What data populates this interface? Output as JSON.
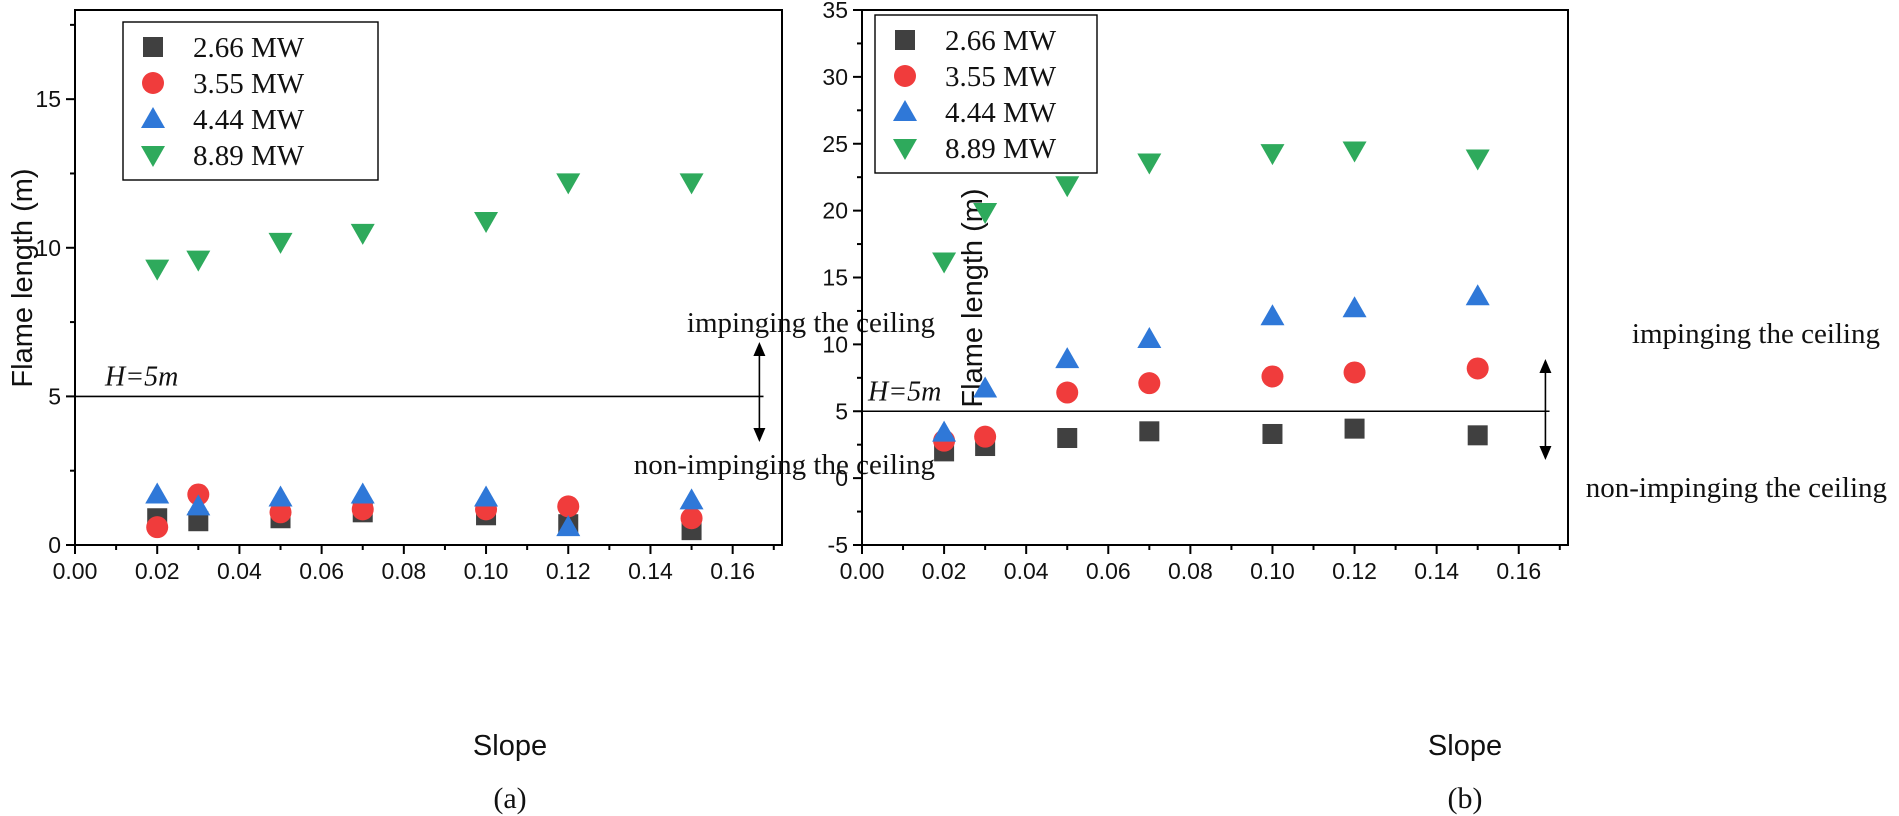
{
  "chart_data": [
    {
      "type": "scatter",
      "panel_label": "(a)",
      "xlabel": "Slope",
      "ylabel": "Flame length  (m)",
      "xlim": [
        0.0,
        0.172
      ],
      "ylim": [
        0,
        18
      ],
      "xticks": [
        0.0,
        0.02,
        0.04,
        0.06,
        0.08,
        0.1,
        0.12,
        0.14,
        0.16
      ],
      "xtick_labels": [
        "0.00",
        "0.02",
        "0.04",
        "0.06",
        "0.08",
        "0.10",
        "0.12",
        "0.14",
        "0.16"
      ],
      "yticks": [
        0,
        5,
        10,
        15
      ],
      "ytick_labels": [
        "0",
        "5",
        "10",
        "15"
      ],
      "legend_position": "top-left",
      "reference_line": {
        "y": 5,
        "label": "H=5m"
      },
      "annotations": {
        "above": "impinging the ceiling",
        "below": "non-impinging the ceiling",
        "arrow_x": 0.1665
      },
      "series": [
        {
          "name": "2.66 MW",
          "marker": "square",
          "color": "#404040",
          "x": [
            0.02,
            0.03,
            0.05,
            0.07,
            0.1,
            0.12,
            0.15
          ],
          "y": [
            0.9,
            0.8,
            0.9,
            1.1,
            1.0,
            0.7,
            0.5
          ]
        },
        {
          "name": "3.55 MW",
          "marker": "circle",
          "color": "#f03c3c",
          "x": [
            0.02,
            0.03,
            0.05,
            0.07,
            0.1,
            0.12,
            0.15
          ],
          "y": [
            0.6,
            1.7,
            1.1,
            1.2,
            1.2,
            1.3,
            0.9
          ]
        },
        {
          "name": "4.44 MW",
          "marker": "triangle-up",
          "color": "#2f78d8",
          "x": [
            0.02,
            0.03,
            0.05,
            0.07,
            0.1,
            0.12,
            0.15
          ],
          "y": [
            1.7,
            1.3,
            1.6,
            1.7,
            1.6,
            0.6,
            1.5
          ]
        },
        {
          "name": "8.89 MW",
          "marker": "triangle-down",
          "color": "#2eaa5c",
          "x": [
            0.02,
            0.03,
            0.05,
            0.07,
            0.1,
            0.12,
            0.15
          ],
          "y": [
            9.3,
            9.6,
            10.2,
            10.5,
            10.9,
            12.2,
            12.2
          ]
        }
      ]
    },
    {
      "type": "scatter",
      "panel_label": "(b)",
      "xlabel": "Slope",
      "ylabel": "Flame length  (m)",
      "xlim": [
        0.0,
        0.172
      ],
      "ylim": [
        -5,
        35
      ],
      "xticks": [
        0.0,
        0.02,
        0.04,
        0.06,
        0.08,
        0.1,
        0.12,
        0.14,
        0.16
      ],
      "xtick_labels": [
        "0.00",
        "0.02",
        "0.04",
        "0.06",
        "0.08",
        "0.10",
        "0.12",
        "0.14",
        "0.16"
      ],
      "yticks": [
        -5,
        0,
        5,
        10,
        15,
        20,
        25,
        30,
        35
      ],
      "ytick_labels": [
        "-5",
        "0",
        "5",
        "10",
        "15",
        "20",
        "25",
        "30",
        "35"
      ],
      "legend_position": "top-left",
      "reference_line": {
        "y": 5,
        "label": "H=5m"
      },
      "annotations": {
        "above": "impinging the ceiling",
        "below": "non-impinging the ceiling",
        "arrow_x": 0.1665
      },
      "series": [
        {
          "name": "2.66 MW",
          "marker": "square",
          "color": "#404040",
          "x": [
            0.02,
            0.03,
            0.05,
            0.07,
            0.1,
            0.12,
            0.15
          ],
          "y": [
            2.0,
            2.4,
            3.0,
            3.5,
            3.3,
            3.7,
            3.2
          ]
        },
        {
          "name": "3.55 MW",
          "marker": "circle",
          "color": "#f03c3c",
          "x": [
            0.02,
            0.03,
            0.05,
            0.07,
            0.1,
            0.12,
            0.15
          ],
          "y": [
            2.8,
            3.1,
            6.4,
            7.1,
            7.6,
            7.9,
            8.2
          ]
        },
        {
          "name": "4.44 MW",
          "marker": "triangle-up",
          "color": "#2f78d8",
          "x": [
            0.02,
            0.03,
            0.05,
            0.07,
            0.1,
            0.12,
            0.15
          ],
          "y": [
            3.4,
            6.7,
            8.9,
            10.4,
            12.1,
            12.7,
            13.6
          ]
        },
        {
          "name": "8.89 MW",
          "marker": "triangle-down",
          "color": "#2eaa5c",
          "x": [
            0.02,
            0.03,
            0.05,
            0.07,
            0.1,
            0.12,
            0.15
          ],
          "y": [
            16.2,
            19.9,
            21.9,
            23.6,
            24.3,
            24.5,
            23.9
          ]
        }
      ]
    }
  ]
}
